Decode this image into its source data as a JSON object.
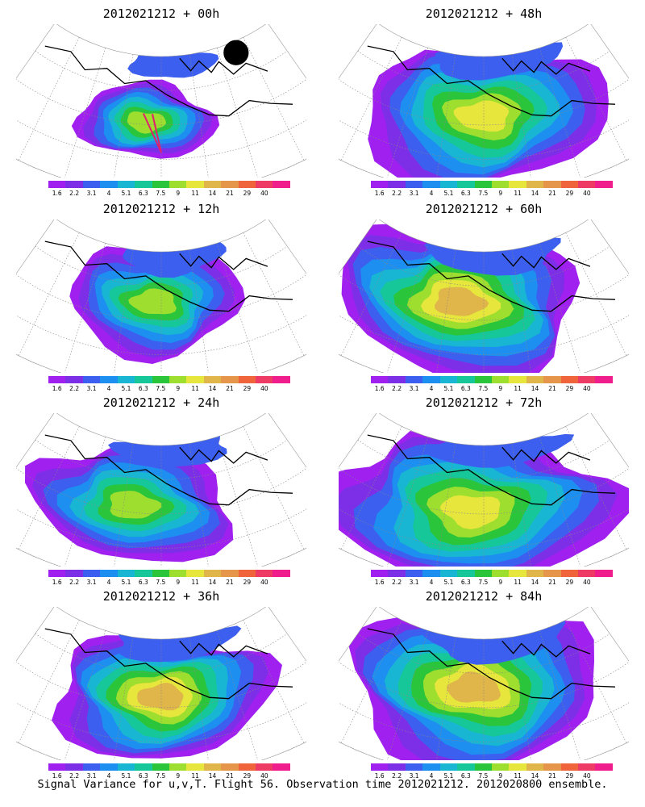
{
  "panels": [
    {
      "title": "2012021212 + 00h",
      "lead_hours": 0,
      "max_level": 7,
      "extent": 0.45,
      "has_flight_track": true
    },
    {
      "title": "2012021212 + 48h",
      "lead_hours": 48,
      "max_level": 8,
      "extent": 0.9
    },
    {
      "title": "2012021212 + 12h",
      "lead_hours": 12,
      "max_level": 7,
      "extent": 0.65
    },
    {
      "title": "2012021212 + 60h",
      "lead_hours": 60,
      "max_level": 9,
      "extent": 0.95
    },
    {
      "title": "2012021212 + 24h",
      "lead_hours": 24,
      "max_level": 7,
      "extent": 0.72
    },
    {
      "title": "2012021212 + 72h",
      "lead_hours": 72,
      "max_level": 8,
      "extent": 1.0
    },
    {
      "title": "2012021212 + 36h",
      "lead_hours": 36,
      "max_level": 9,
      "extent": 0.8
    },
    {
      "title": "2012021212 + 84h",
      "lead_hours": 84,
      "max_level": 9,
      "extent": 1.0
    }
  ],
  "colorbar": {
    "colors": [
      "#a020f0",
      "#7d2fe8",
      "#3c5ff0",
      "#1d8ff0",
      "#18b6d2",
      "#16c79a",
      "#2bc53c",
      "#9ede2e",
      "#e6e63c",
      "#e0b64a",
      "#e6964a",
      "#f0643c",
      "#ee3b66",
      "#f01e8c"
    ],
    "labels": [
      "1.6",
      "2.2",
      "3.1",
      "4",
      "5.1",
      "6.3",
      "7.5",
      "9",
      "11",
      "14",
      "21",
      "29",
      "40"
    ]
  },
  "caption": "Signal Variance for u,v,T. Flight 56. Observation time 2012021212. 2012020800 ensemble."
}
